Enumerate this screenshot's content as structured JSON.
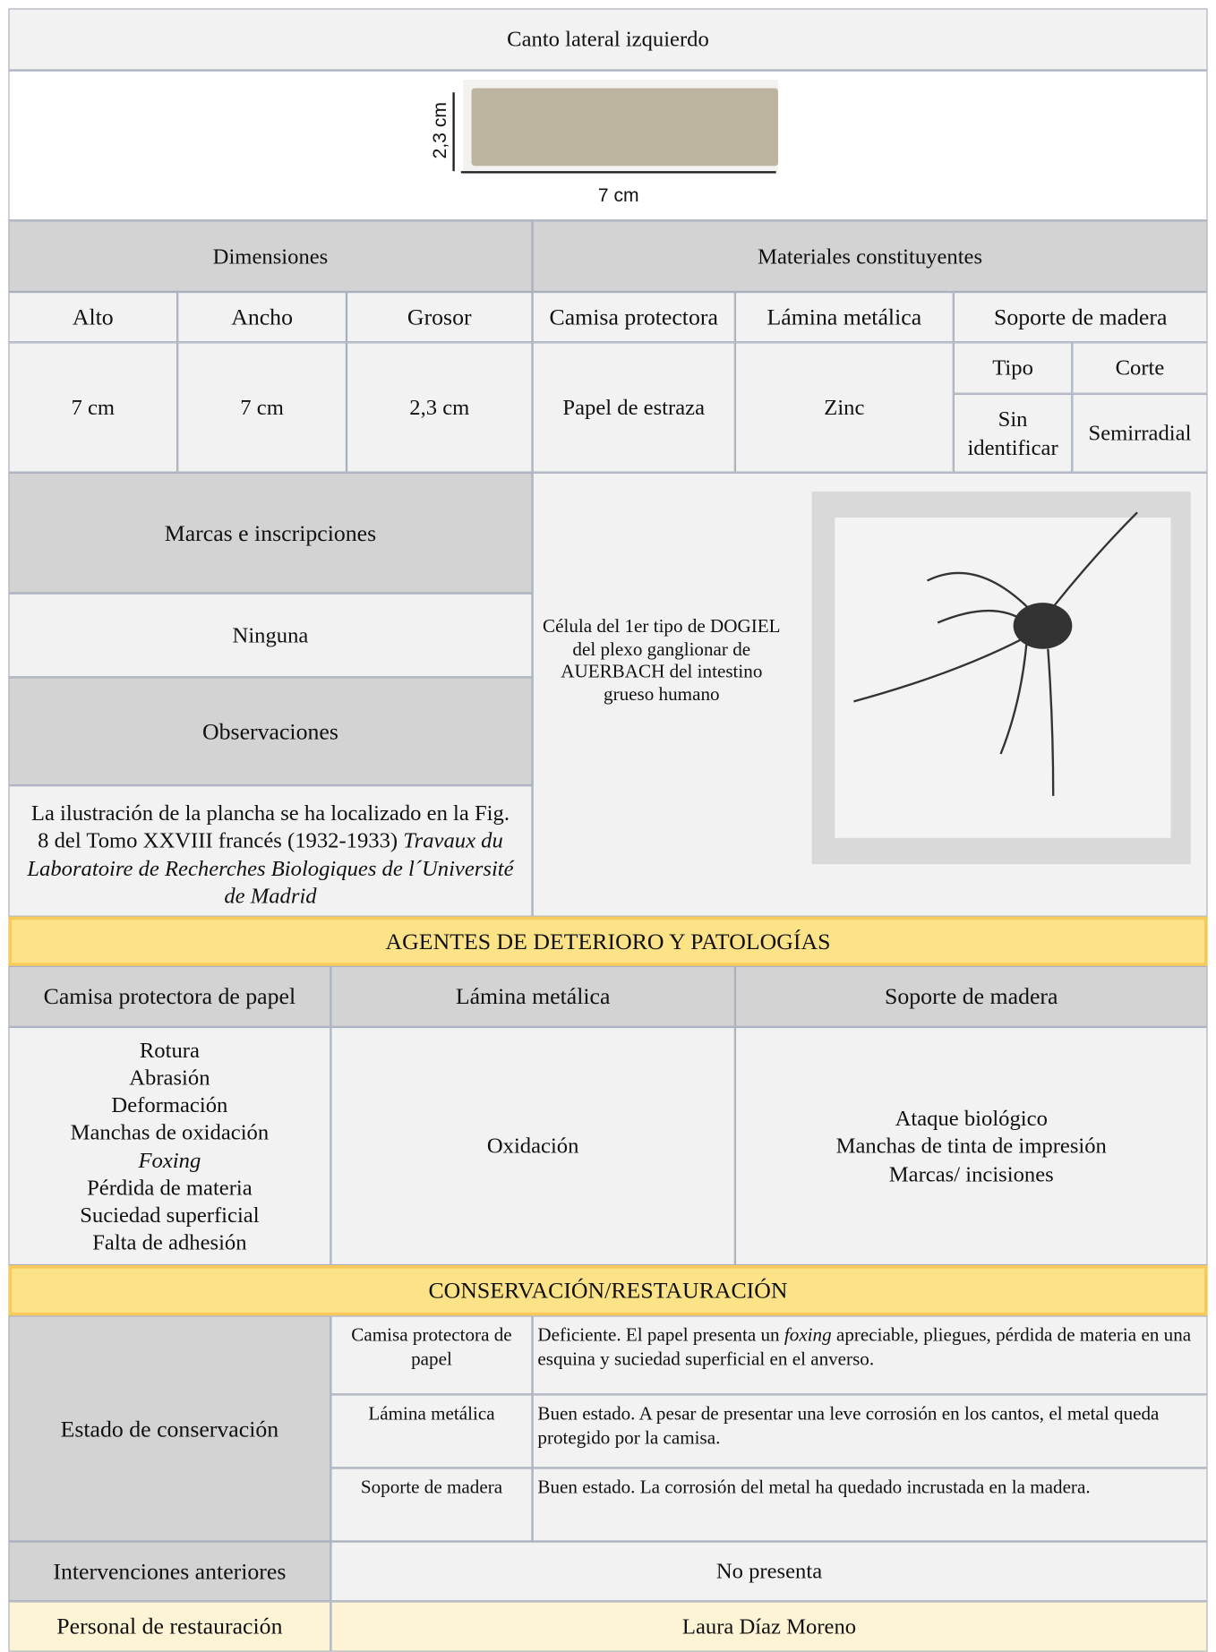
{
  "header": {
    "title": "Canto lateral izquierdo",
    "height_label": "2,3 cm",
    "width_label": "7 cm"
  },
  "dimensions": {
    "title": "Dimensiones",
    "columns": [
      "Alto",
      "Ancho",
      "Grosor"
    ],
    "values": [
      "7 cm",
      "7 cm",
      "2,3 cm"
    ]
  },
  "materials": {
    "title": "Materiales constituyentes",
    "columns": [
      "Camisa protectora",
      "Lámina metálica",
      "Soporte de madera"
    ],
    "values": [
      "Papel de estraza",
      "Zinc"
    ],
    "wood": {
      "columns": [
        "Tipo",
        "Corte"
      ],
      "values": [
        "Sin identificar",
        "Semirradial"
      ]
    }
  },
  "marks": {
    "title": "Marcas e inscripciones",
    "value": "Ninguna"
  },
  "observations": {
    "title": "Observaciones",
    "text": "La ilustración de la plancha se ha localizado en la Fig. 8 del Tomo XXVIII francés (1932-1933)",
    "italic": "Travaux du Laboratoire de Recherches Biologiques de l´Université de Madrid"
  },
  "image_caption": "Célula del 1er tipo de DOGIEL del plexo ganglionar de AUERBACH del intestino grueso humano",
  "deterioration": {
    "title": "AGENTES DE DETERIORO Y PATOLOGÍAS",
    "columns": [
      "Camisa protectora de papel",
      "Lámina metálica",
      "Soporte de madera"
    ],
    "lists": [
      [
        "Rotura",
        "Abrasión",
        "Deformación",
        "Manchas de oxidación",
        "Foxing",
        "Pérdida de materia",
        "Suciedad superficial",
        "Falta de adhesión"
      ],
      [
        "Oxidación"
      ],
      [
        "Ataque biológico",
        "Manchas de tinta de impresión",
        "Marcas/ incisiones"
      ]
    ]
  },
  "conservation": {
    "title": "CONSERVACIÓN/RESTAURACIÓN",
    "state_label": "Estado de conservación",
    "rows": [
      {
        "part": "Camisa protectora de papel",
        "text": [
          "Deficiente. El papel presenta un ",
          "foxing",
          " apreciable, pliegues, pérdida de materia en una esquina y suciedad superficial en el anverso."
        ]
      },
      {
        "part": "Lámina metálica",
        "text": [
          "Buen estado. A pesar de presentar una leve corrosión en los cantos, el metal queda protegido por la camisa."
        ]
      },
      {
        "part": "Soporte de madera",
        "text": [
          "Buen estado. La corrosión del metal ha quedado incrustada en la madera."
        ]
      }
    ]
  },
  "previous": {
    "label": "Intervenciones anteriores",
    "value": "No presenta"
  },
  "staff": {
    "label": "Personal de restauración",
    "value": "Laura Díaz Moreno"
  }
}
